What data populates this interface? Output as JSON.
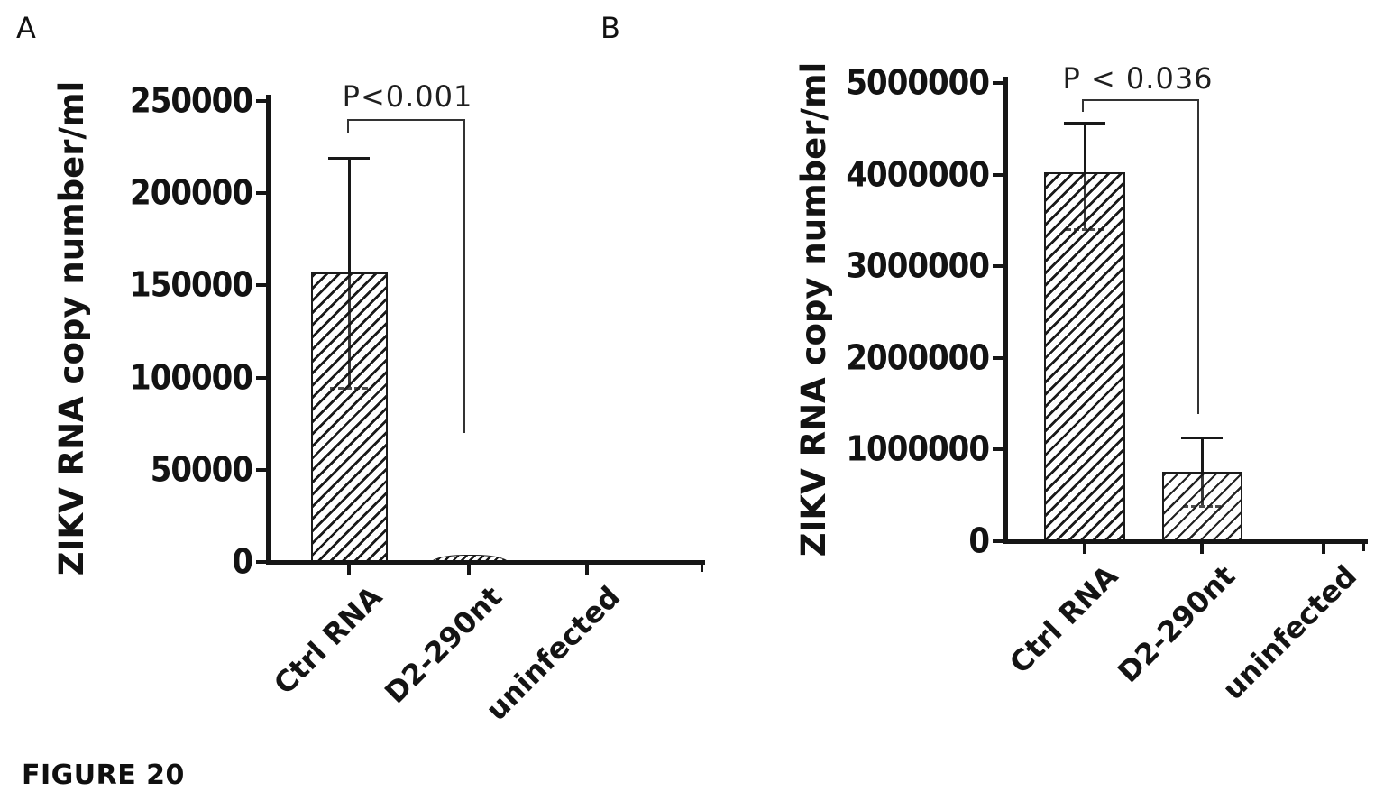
{
  "figure_label": "FIGURE 20",
  "chart_data": [
    {
      "panel_letter": "A",
      "type": "bar",
      "title": "",
      "xlabel": "",
      "ylabel": "ZIKV RNA copy number/ml",
      "categories": [
        "Ctrl RNA",
        "D2-290nt",
        "uninfected"
      ],
      "values": [
        157000,
        4000,
        0
      ],
      "error_upper": [
        219000,
        null,
        null
      ],
      "error_lower": [
        95000,
        null,
        null
      ],
      "ylim": [
        0,
        250000
      ],
      "yticks": [
        0,
        50000,
        100000,
        150000,
        200000,
        250000
      ],
      "ytick_labels": [
        "0",
        "50000",
        "100000",
        "150000",
        "200000",
        "250000"
      ],
      "grid": false,
      "legend": "none",
      "significance": {
        "label": "P<0.001",
        "from": "Ctrl RNA",
        "to": "D2-290nt"
      }
    },
    {
      "panel_letter": "B",
      "type": "bar",
      "title": "",
      "xlabel": "",
      "ylabel": "ZIKV RNA copy number/ml",
      "categories": [
        "Ctrl RNA",
        "D2-290nt",
        "uninfected"
      ],
      "values": [
        4030000,
        760000,
        0
      ],
      "error_upper": [
        4560000,
        1130000,
        null
      ],
      "error_lower": [
        3420000,
        390000,
        null
      ],
      "ylim": [
        0,
        5000000
      ],
      "yticks": [
        0,
        1000000,
        2000000,
        3000000,
        4000000,
        5000000
      ],
      "ytick_labels": [
        "0",
        "1000000",
        "2000000",
        "3000000",
        "4000000",
        "5000000"
      ],
      "grid": false,
      "legend": "none",
      "significance": {
        "label": "P < 0.036",
        "from": "Ctrl RNA",
        "to": "D2-290nt"
      }
    }
  ],
  "colors": {
    "ink": "#161616",
    "background": "#ffffff"
  }
}
